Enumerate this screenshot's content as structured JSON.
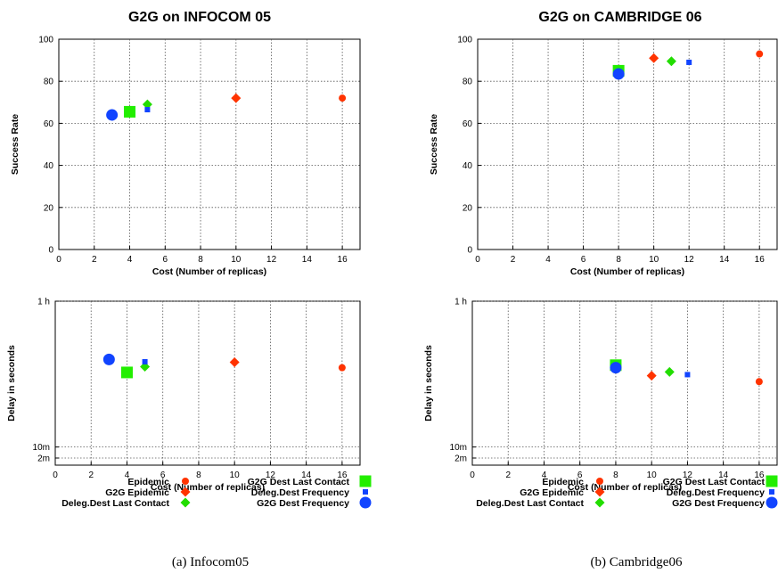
{
  "colors": {
    "epidemic": "#ff3300",
    "g2g_epidemic": "#ff3300",
    "deleg_last_contact": "#22dd00",
    "g2g_last_contact": "#22ee00",
    "deleg_frequency": "#1144ff",
    "g2g_frequency": "#1144ff",
    "grid": "#555555"
  },
  "legend_labels": {
    "epidemic": "Epidemic",
    "g2g_epidemic": "G2G Epidemic",
    "deleg_last_contact": "Deleg.Dest Last Contact",
    "g2g_last_contact": "G2G Dest Last Contact",
    "deleg_frequency": "Deleg.Dest Frequency",
    "g2g_frequency": "G2G Dest Frequency"
  },
  "captions": [
    "(a)  Infocom05",
    "(b)  Cambridge06"
  ],
  "chart_data": [
    {
      "type": "scatter",
      "title": "G2G on INFOCOM 05",
      "xlabel": "Cost (Number of replicas)",
      "ylabel": "Success Rate",
      "xlim": [
        0,
        17
      ],
      "ylim": [
        0,
        100
      ],
      "x_ticks": [
        0,
        2,
        4,
        6,
        8,
        10,
        12,
        14,
        16
      ],
      "y_ticks": [
        0,
        20,
        40,
        60,
        80,
        100
      ],
      "y_tick_labels": [
        "0",
        "20",
        "40",
        "60",
        "80",
        "100"
      ],
      "grid": true,
      "series": [
        {
          "name": "Epidemic",
          "key": "epidemic",
          "marker": "circle-small",
          "points": [
            {
              "x": 16,
              "y": 72
            }
          ]
        },
        {
          "name": "G2G Epidemic",
          "key": "g2g_epidemic",
          "marker": "diamond",
          "points": [
            {
              "x": 10,
              "y": 72
            }
          ]
        },
        {
          "name": "Deleg.Dest Last Contact",
          "key": "deleg_last_contact",
          "marker": "diamond",
          "points": [
            {
              "x": 5,
              "y": 69
            }
          ]
        },
        {
          "name": "G2G Dest Last Contact",
          "key": "g2g_last_contact",
          "marker": "square-large",
          "points": [
            {
              "x": 4,
              "y": 65.5
            }
          ]
        },
        {
          "name": "Deleg.Dest Frequency",
          "key": "deleg_frequency",
          "marker": "square-small",
          "points": [
            {
              "x": 5,
              "y": 66.5
            }
          ]
        },
        {
          "name": "G2G Dest Frequency",
          "key": "g2g_frequency",
          "marker": "circle-large",
          "points": [
            {
              "x": 3,
              "y": 64
            }
          ]
        }
      ]
    },
    {
      "type": "scatter",
      "title": "G2G on CAMBRIDGE 06",
      "xlabel": "Cost (Number of replicas)",
      "ylabel": "Success Rate",
      "xlim": [
        0,
        17
      ],
      "ylim": [
        0,
        100
      ],
      "x_ticks": [
        0,
        2,
        4,
        6,
        8,
        10,
        12,
        14,
        16
      ],
      "y_ticks": [
        0,
        20,
        40,
        60,
        80,
        100
      ],
      "y_tick_labels": [
        "0",
        "20",
        "40",
        "60",
        "80",
        "100"
      ],
      "grid": true,
      "series": [
        {
          "name": "Epidemic",
          "key": "epidemic",
          "marker": "circle-small",
          "points": [
            {
              "x": 16,
              "y": 93
            }
          ]
        },
        {
          "name": "G2G Epidemic",
          "key": "g2g_epidemic",
          "marker": "diamond",
          "points": [
            {
              "x": 10,
              "y": 91
            }
          ]
        },
        {
          "name": "Deleg.Dest Last Contact",
          "key": "deleg_last_contact",
          "marker": "diamond",
          "points": [
            {
              "x": 11,
              "y": 89.5
            }
          ]
        },
        {
          "name": "G2G Dest Last Contact",
          "key": "g2g_last_contact",
          "marker": "square-large",
          "points": [
            {
              "x": 8,
              "y": 85
            }
          ]
        },
        {
          "name": "Deleg.Dest Frequency",
          "key": "deleg_frequency",
          "marker": "square-small",
          "points": [
            {
              "x": 12,
              "y": 89
            }
          ]
        },
        {
          "name": "G2G Dest Frequency",
          "key": "g2g_frequency",
          "marker": "circle-large",
          "points": [
            {
              "x": 8,
              "y": 83.5
            }
          ]
        }
      ]
    },
    {
      "type": "scatter",
      "title": "",
      "xlabel": "Cost (Number of replicas)",
      "ylabel": "Delay in seconds",
      "xlim": [
        0,
        17
      ],
      "y_scale": "log",
      "y_unit": "seconds",
      "ylim": [
        480,
        3600
      ],
      "x_ticks": [
        0,
        2,
        4,
        6,
        8,
        10,
        12,
        14,
        16
      ],
      "y_ticks": [
        600,
        3600,
        120
      ],
      "y_tick_labels": [
        "10m",
        "1 h",
        "2m"
      ],
      "grid": true,
      "series": [
        {
          "name": "Epidemic",
          "key": "epidemic",
          "marker": "circle-small",
          "points": [
            {
              "x": 16,
              "y": 1590
            }
          ]
        },
        {
          "name": "G2G Epidemic",
          "key": "g2g_epidemic",
          "marker": "diamond",
          "points": [
            {
              "x": 10,
              "y": 1700
            }
          ]
        },
        {
          "name": "Deleg.Dest Last Contact",
          "key": "deleg_last_contact",
          "marker": "diamond",
          "points": [
            {
              "x": 5,
              "y": 1610
            }
          ]
        },
        {
          "name": "G2G Dest Last Contact",
          "key": "g2g_last_contact",
          "marker": "square-large",
          "points": [
            {
              "x": 4,
              "y": 1500
            }
          ]
        },
        {
          "name": "Deleg.Dest Frequency",
          "key": "deleg_frequency",
          "marker": "square-small",
          "points": [
            {
              "x": 5,
              "y": 1710
            }
          ]
        },
        {
          "name": "G2G Dest Frequency",
          "key": "g2g_frequency",
          "marker": "circle-large",
          "points": [
            {
              "x": 3,
              "y": 1760
            }
          ]
        }
      ]
    },
    {
      "type": "scatter",
      "title": "",
      "xlabel": "Cost (Number of replicas)",
      "ylabel": "Delay in seconds",
      "xlim": [
        0,
        17
      ],
      "y_scale": "log",
      "y_unit": "seconds",
      "ylim": [
        480,
        3600
      ],
      "x_ticks": [
        0,
        2,
        4,
        6,
        8,
        10,
        12,
        14,
        16
      ],
      "y_ticks": [
        600,
        3600,
        120
      ],
      "y_tick_labels": [
        "10m",
        "1 h",
        "2m"
      ],
      "grid": true,
      "series": [
        {
          "name": "Epidemic",
          "key": "epidemic",
          "marker": "circle-small",
          "points": [
            {
              "x": 16,
              "y": 1340
            }
          ]
        },
        {
          "name": "G2G Epidemic",
          "key": "g2g_epidemic",
          "marker": "diamond",
          "points": [
            {
              "x": 10,
              "y": 1440
            }
          ]
        },
        {
          "name": "Deleg.Dest Last Contact",
          "key": "deleg_last_contact",
          "marker": "diamond",
          "points": [
            {
              "x": 11,
              "y": 1510
            }
          ]
        },
        {
          "name": "G2G Dest Last Contact",
          "key": "g2g_last_contact",
          "marker": "square-large",
          "points": [
            {
              "x": 8,
              "y": 1640
            }
          ]
        },
        {
          "name": "Deleg.Dest Frequency",
          "key": "deleg_frequency",
          "marker": "square-small",
          "points": [
            {
              "x": 12,
              "y": 1460
            }
          ]
        },
        {
          "name": "G2G Dest Frequency",
          "key": "g2g_frequency",
          "marker": "circle-large",
          "points": [
            {
              "x": 8,
              "y": 1590
            }
          ]
        }
      ]
    }
  ]
}
